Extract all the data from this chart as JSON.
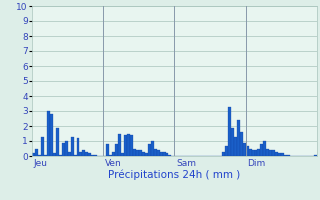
{
  "title": "Précipitations 24h ( mm )",
  "background_color": "#ddeee8",
  "plot_background": "#e8f5f0",
  "bar_color": "#1a5fc8",
  "bar_edge_color": "#1040a0",
  "ylim": [
    0,
    10
  ],
  "yticks": [
    0,
    1,
    2,
    3,
    4,
    5,
    6,
    7,
    8,
    9,
    10
  ],
  "day_labels": [
    "Jeu",
    "Ven",
    "Sam",
    "Dim"
  ],
  "day_positions": [
    0,
    24,
    48,
    72
  ],
  "values": [
    0.2,
    0.5,
    0.1,
    1.3,
    0.1,
    3.0,
    2.8,
    0.2,
    1.9,
    0.1,
    0.9,
    1.0,
    0.3,
    1.3,
    0.1,
    1.2,
    0.3,
    0.4,
    0.3,
    0.2,
    0.1,
    0.1,
    0.0,
    0.0,
    0.0,
    0.8,
    0.1,
    0.3,
    0.8,
    1.5,
    0.2,
    1.4,
    1.5,
    1.4,
    0.5,
    0.4,
    0.4,
    0.3,
    0.2,
    0.8,
    1.0,
    0.5,
    0.4,
    0.3,
    0.3,
    0.2,
    0.1,
    0.0,
    0.0,
    0.0,
    0.0,
    0.0,
    0.0,
    0.0,
    0.0,
    0.0,
    0.0,
    0.0,
    0.0,
    0.0,
    0.0,
    0.0,
    0.0,
    0.0,
    0.3,
    0.7,
    3.3,
    1.9,
    1.3,
    2.4,
    1.6,
    0.9,
    0.7,
    0.5,
    0.4,
    0.4,
    0.5,
    0.8,
    1.0,
    0.5,
    0.4,
    0.4,
    0.3,
    0.2,
    0.2,
    0.1,
    0.1,
    0.0,
    0.0,
    0.0,
    0.0,
    0.0,
    0.0,
    0.0,
    0.0,
    0.1
  ],
  "grid_color": "#a8c4bc",
  "vline_color": "#8899aa",
  "label_color": "#3344bb",
  "title_color": "#2244cc",
  "figsize": [
    3.2,
    2.0
  ],
  "dpi": 100
}
